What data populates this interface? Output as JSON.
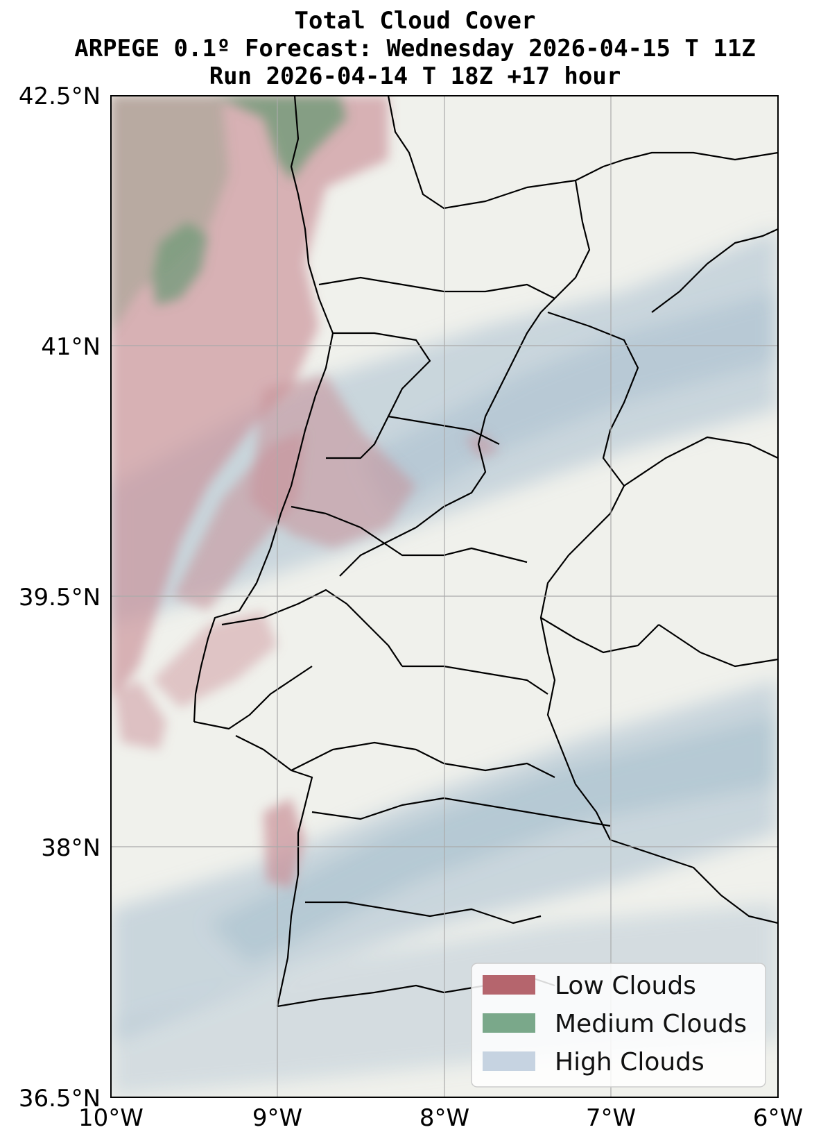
{
  "title": {
    "line1": "Total Cloud Cover",
    "line2": "ARPEGE 0.1º Forecast: Wednesday 2026-04-15 T 11Z",
    "line3": "Run 2026-04-14 T 18Z +17 hour"
  },
  "axes": {
    "lat_labels": [
      "42.5°N",
      "41°N",
      "39.5°N",
      "38°N",
      "36.5°N"
    ],
    "lon_labels": [
      "10°W",
      "9°W",
      "8°W",
      "7°W",
      "6°W"
    ],
    "lat_range": [
      36.5,
      42.5
    ],
    "lon_range": [
      -10,
      -6
    ],
    "grid": true
  },
  "legend": {
    "position": "lower-right",
    "items": [
      {
        "label": "Low Clouds",
        "color": "#b5656d"
      },
      {
        "label": "Medium Clouds",
        "color": "#7aa88a"
      },
      {
        "label": "High Clouds",
        "color": "#c6d3e1"
      }
    ]
  },
  "colors": {
    "land": "#f0f1ec",
    "low": "#c98f97",
    "medium": "#6f9a78",
    "high": "#a9bfcf",
    "border": "#000000",
    "grid": "#aaaaaa"
  }
}
